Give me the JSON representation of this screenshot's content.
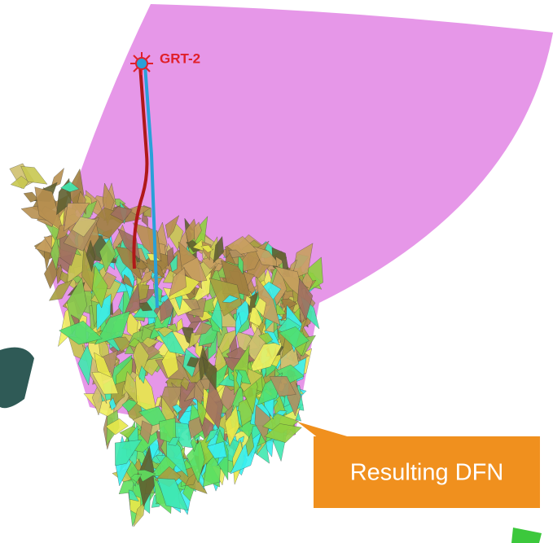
{
  "well_label": "GRT-2",
  "callout": "Resulting DFN"
}
